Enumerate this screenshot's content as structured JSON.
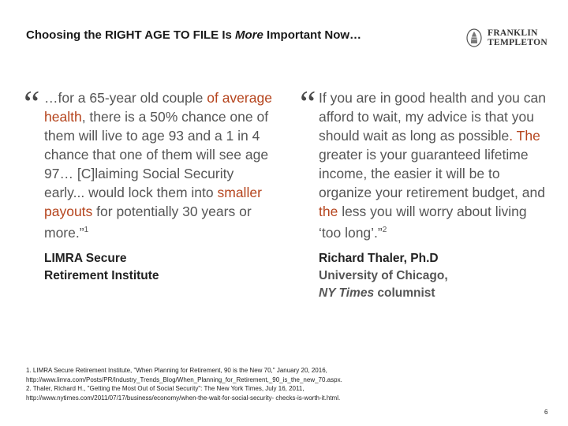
{
  "header": {
    "title_pre": "Choosing the RIGHT AGE TO FILE Is ",
    "title_em": "More",
    "title_post": " Important Now…",
    "logo": {
      "line1": "FRANKLIN",
      "line2": "TEMPLETON",
      "icon": "franklin-templeton-logo-icon"
    }
  },
  "quote_left": {
    "mark": "“",
    "parts": [
      {
        "text": "…for a 65-year old couple ",
        "hl": false
      },
      {
        "text": "of average health",
        "hl": true
      },
      {
        "text": ", there is a 50% chance one of them will live to age 93 and a 1 in 4 chance that one of them will see age 97… [C]laiming Social Security early... would lock them into ",
        "hl": false
      },
      {
        "text": "smaller payouts",
        "hl": true
      },
      {
        "text": " for potentially 30 years or more.”",
        "hl": false
      },
      {
        "text": "1",
        "hl": false,
        "sup": true
      }
    ],
    "attribution_line1": "LIMRA Secure",
    "attribution_line2": "Retirement Institute"
  },
  "quote_right": {
    "mark": "“",
    "parts": [
      {
        "text": "If you are in good health and you can afford to wait, my advice is that you should wait as long as possible",
        "hl": false
      },
      {
        "text": ". The ",
        "hl": true
      },
      {
        "text": "greater is your guaranteed lifetime income, the easier it will be to organize your retirement budget, and ",
        "hl": false
      },
      {
        "text": "the",
        "hl": true
      },
      {
        "text": " less you will worry about living ‘too long’.”",
        "hl": false
      },
      {
        "text": "2",
        "hl": false,
        "sup": true
      }
    ],
    "attribution_name": "Richard Thaler, Ph.D",
    "attribution_affil": "University of Chicago,",
    "attribution_paper": "NY Times",
    "attribution_role": " columnist"
  },
  "footnotes": {
    "line1": "1. LIMRA Secure Retirement Institute, \"When Planning for Retirement, 90 is the New 70,\" January 20, 2016,",
    "line2": "http://www.limra.com/Posts/PR/Industry_Trends_Blog/When_Planning_for_Retirement,_90_is_the_new_70.aspx.",
    "line3": "2. Thaler, Richard H., \"Getting the Most Out of Social Security\": The New York Times, July 16, 2011,",
    "line4": "http://www.nytimes.com/2011/07/17/business/economy/when-the-wait-for-social-security- checks-is-worth-it.html."
  },
  "page_number": "6"
}
